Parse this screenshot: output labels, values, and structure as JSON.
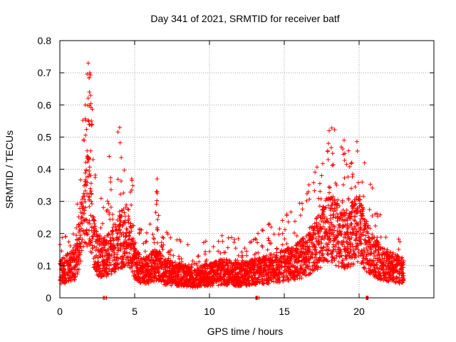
{
  "chart_data": {
    "type": "scatter",
    "title": "Day 341 of 2021, SRMTID for receiver batf",
    "xlabel": "GPS time / hours",
    "ylabel": "SRMTID / TECUs",
    "xlim": [
      0,
      25
    ],
    "ylim": [
      0,
      0.8
    ],
    "xticks": [
      0,
      5,
      10,
      15,
      20
    ],
    "xtick_labels": [
      "0",
      "5",
      "10",
      "15",
      "20"
    ],
    "yticks": [
      0,
      0.1,
      0.2,
      0.3,
      0.4,
      0.5,
      0.6,
      0.7,
      0.8
    ],
    "ytick_labels": [
      "0",
      "0.1",
      "0.2",
      "0.3",
      "0.4",
      "0.5",
      "0.6",
      "0.7",
      "0.8"
    ],
    "grid": true,
    "marker": "plus",
    "series": [
      {
        "name": "SRMTID",
        "color": "#ff0000",
        "envelope": {
          "x": [
            0,
            0.5,
            1.0,
            1.5,
            1.8,
            2.0,
            2.2,
            2.5,
            3.0,
            3.5,
            4.0,
            4.5,
            5.0,
            5.5,
            6.0,
            6.5,
            7.0,
            8.0,
            9.0,
            10.0,
            11.0,
            12.0,
            13.0,
            14.0,
            15.0,
            16.0,
            16.5,
            17.0,
            17.5,
            18.0,
            18.5,
            19.0,
            19.5,
            20.0,
            20.5,
            21.0,
            21.5,
            22.0,
            22.5,
            23.0
          ],
          "y": [
            0.09,
            0.1,
            0.12,
            0.25,
            0.32,
            0.35,
            0.2,
            0.15,
            0.14,
            0.16,
            0.2,
            0.22,
            0.12,
            0.09,
            0.1,
            0.12,
            0.09,
            0.08,
            0.07,
            0.08,
            0.09,
            0.08,
            0.09,
            0.1,
            0.11,
            0.13,
            0.15,
            0.18,
            0.2,
            0.25,
            0.22,
            0.2,
            0.22,
            0.24,
            0.18,
            0.14,
            0.12,
            0.11,
            0.1,
            0.09
          ]
        },
        "peaks": [
          {
            "x": 1.9,
            "y": 0.73
          },
          {
            "x": 2.0,
            "y": 0.7
          },
          {
            "x": 1.7,
            "y": 0.6
          },
          {
            "x": 2.05,
            "y": 0.63
          },
          {
            "x": 4.0,
            "y": 0.53
          },
          {
            "x": 3.3,
            "y": 0.44
          },
          {
            "x": 4.8,
            "y": 0.37
          },
          {
            "x": 6.5,
            "y": 0.37
          },
          {
            "x": 18.0,
            "y": 0.52
          },
          {
            "x": 19.0,
            "y": 0.49
          },
          {
            "x": 17.5,
            "y": 0.38
          },
          {
            "x": 20.2,
            "y": 0.36
          },
          {
            "x": 14.0,
            "y": 0.23
          },
          {
            "x": 20.5,
            "y": 0.0
          },
          {
            "x": 3.0,
            "y": 0.0
          },
          {
            "x": 13.2,
            "y": 0.0
          }
        ]
      }
    ]
  }
}
